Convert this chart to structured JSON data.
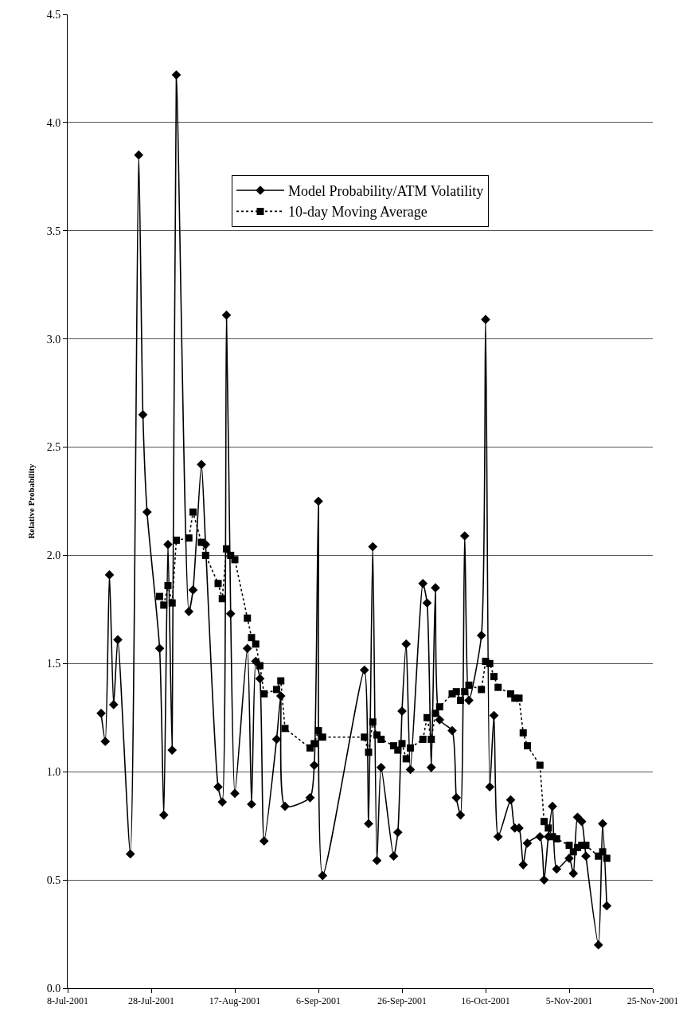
{
  "chart_data": {
    "type": "line",
    "ylabel": "Relative Probability",
    "xlim": [
      "2001-07-08",
      "2001-11-25"
    ],
    "xticks": [
      {
        "value": "2001-07-08",
        "label": "8-Jul-2001"
      },
      {
        "value": "2001-07-28",
        "label": "28-Jul-2001"
      },
      {
        "value": "2001-08-17",
        "label": "17-Aug-2001"
      },
      {
        "value": "2001-09-06",
        "label": "6-Sep-2001"
      },
      {
        "value": "2001-09-26",
        "label": "26-Sep-2001"
      },
      {
        "value": "2001-10-16",
        "label": "16-Oct-2001"
      },
      {
        "value": "2001-11-05",
        "label": "5-Nov-2001"
      },
      {
        "value": "2001-11-25",
        "label": "25-Nov-2001"
      }
    ],
    "ylim": [
      0,
      4.5
    ],
    "yticks": [
      {
        "value": 0,
        "label": "0.0"
      },
      {
        "value": 0.5,
        "label": "0.5"
      },
      {
        "value": 1,
        "label": "1.0"
      },
      {
        "value": 1.5,
        "label": "1.5"
      },
      {
        "value": 2,
        "label": "2.0"
      },
      {
        "value": 2.5,
        "label": "2.5"
      },
      {
        "value": 3,
        "label": "3.0"
      },
      {
        "value": 3.5,
        "label": "3.5"
      },
      {
        "value": 4,
        "label": "4.0"
      },
      {
        "value": 4.5,
        "label": "4.5"
      }
    ],
    "grid": "y",
    "legend": "top",
    "series": [
      {
        "name": "Model Probability/ATM Volatility",
        "color": "#000000",
        "marker": "diamond",
        "line_style": "solid",
        "x": [
          "2001-07-16",
          "2001-07-17",
          "2001-07-18",
          "2001-07-19",
          "2001-07-20",
          "2001-07-23",
          "2001-07-25",
          "2001-07-26",
          "2001-07-27",
          "2001-07-30",
          "2001-07-31",
          "2001-08-01",
          "2001-08-02",
          "2001-08-03",
          "2001-08-06",
          "2001-08-07",
          "2001-08-09",
          "2001-08-10",
          "2001-08-13",
          "2001-08-14",
          "2001-08-15",
          "2001-08-16",
          "2001-08-17",
          "2001-08-20",
          "2001-08-21",
          "2001-08-22",
          "2001-08-23",
          "2001-08-24",
          "2001-08-27",
          "2001-08-28",
          "2001-08-29",
          "2001-09-04",
          "2001-09-05",
          "2001-09-06",
          "2001-09-07",
          "2001-09-17",
          "2001-09-18",
          "2001-09-19",
          "2001-09-20",
          "2001-09-21",
          "2001-09-24",
          "2001-09-25",
          "2001-09-26",
          "2001-09-27",
          "2001-09-28",
          "2001-10-01",
          "2001-10-02",
          "2001-10-03",
          "2001-10-04",
          "2001-10-05",
          "2001-10-08",
          "2001-10-09",
          "2001-10-10",
          "2001-10-11",
          "2001-10-12",
          "2001-10-15",
          "2001-10-16",
          "2001-10-17",
          "2001-10-18",
          "2001-10-19",
          "2001-10-22",
          "2001-10-23",
          "2001-10-24",
          "2001-10-25",
          "2001-10-26",
          "2001-10-29",
          "2001-10-30",
          "2001-10-31",
          "2001-11-01",
          "2001-11-02",
          "2001-11-05",
          "2001-11-06",
          "2001-11-07",
          "2001-11-08",
          "2001-11-09",
          "2001-11-12",
          "2001-11-13",
          "2001-11-14"
        ],
        "values": [
          1.27,
          1.14,
          1.91,
          1.31,
          1.61,
          0.62,
          3.85,
          2.65,
          2.2,
          1.57,
          0.8,
          2.05,
          1.1,
          4.22,
          1.74,
          1.84,
          2.42,
          2.05,
          0.93,
          0.86,
          3.11,
          1.73,
          0.9,
          1.57,
          0.85,
          1.51,
          1.43,
          0.68,
          1.15,
          1.35,
          0.84,
          0.88,
          1.03,
          2.25,
          0.52,
          1.47,
          0.76,
          2.04,
          0.59,
          1.02,
          0.61,
          0.72,
          1.28,
          1.59,
          1.01,
          1.87,
          1.78,
          1.02,
          1.85,
          1.24,
          1.19,
          0.88,
          0.8,
          2.09,
          1.33,
          1.63,
          3.09,
          0.93,
          1.26,
          0.7,
          0.87,
          0.74,
          0.74,
          0.57,
          0.67,
          0.7,
          0.5,
          0.7,
          0.84,
          0.55,
          0.6,
          0.53,
          0.79,
          0.77,
          0.61,
          0.2,
          0.76,
          0.38
        ]
      },
      {
        "name": "10-day Moving Average",
        "color": "#000000",
        "marker": "square",
        "line_style": "dotted",
        "x": [
          "2001-07-30",
          "2001-07-31",
          "2001-08-01",
          "2001-08-02",
          "2001-08-03",
          "2001-08-06",
          "2001-08-07",
          "2001-08-09",
          "2001-08-10",
          "2001-08-13",
          "2001-08-14",
          "2001-08-15",
          "2001-08-16",
          "2001-08-17",
          "2001-08-20",
          "2001-08-21",
          "2001-08-22",
          "2001-08-23",
          "2001-08-24",
          "2001-08-27",
          "2001-08-28",
          "2001-08-29",
          "2001-09-04",
          "2001-09-05",
          "2001-09-06",
          "2001-09-07",
          "2001-09-17",
          "2001-09-18",
          "2001-09-19",
          "2001-09-20",
          "2001-09-21",
          "2001-09-24",
          "2001-09-25",
          "2001-09-26",
          "2001-09-27",
          "2001-09-28",
          "2001-10-01",
          "2001-10-02",
          "2001-10-03",
          "2001-10-04",
          "2001-10-05",
          "2001-10-08",
          "2001-10-09",
          "2001-10-10",
          "2001-10-11",
          "2001-10-12",
          "2001-10-15",
          "2001-10-16",
          "2001-10-17",
          "2001-10-18",
          "2001-10-19",
          "2001-10-22",
          "2001-10-23",
          "2001-10-24",
          "2001-10-25",
          "2001-10-26",
          "2001-10-29",
          "2001-10-30",
          "2001-10-31",
          "2001-11-01",
          "2001-11-02",
          "2001-11-05",
          "2001-11-06",
          "2001-11-07",
          "2001-11-08",
          "2001-11-09",
          "2001-11-12",
          "2001-11-13",
          "2001-11-14"
        ],
        "values": [
          1.81,
          1.77,
          1.86,
          1.78,
          2.07,
          2.08,
          2.2,
          2.06,
          2.0,
          1.87,
          1.8,
          2.03,
          2.0,
          1.98,
          1.71,
          1.62,
          1.59,
          1.49,
          1.36,
          1.38,
          1.42,
          1.2,
          1.11,
          1.13,
          1.19,
          1.16,
          1.16,
          1.09,
          1.23,
          1.17,
          1.15,
          1.12,
          1.1,
          1.13,
          1.06,
          1.11,
          1.15,
          1.25,
          1.15,
          1.27,
          1.3,
          1.36,
          1.37,
          1.33,
          1.37,
          1.4,
          1.38,
          1.51,
          1.5,
          1.44,
          1.39,
          1.36,
          1.34,
          1.34,
          1.18,
          1.12,
          1.03,
          0.77,
          0.74,
          0.7,
          0.69,
          0.66,
          0.63,
          0.65,
          0.66,
          0.66,
          0.61,
          0.63,
          0.6
        ]
      }
    ]
  }
}
